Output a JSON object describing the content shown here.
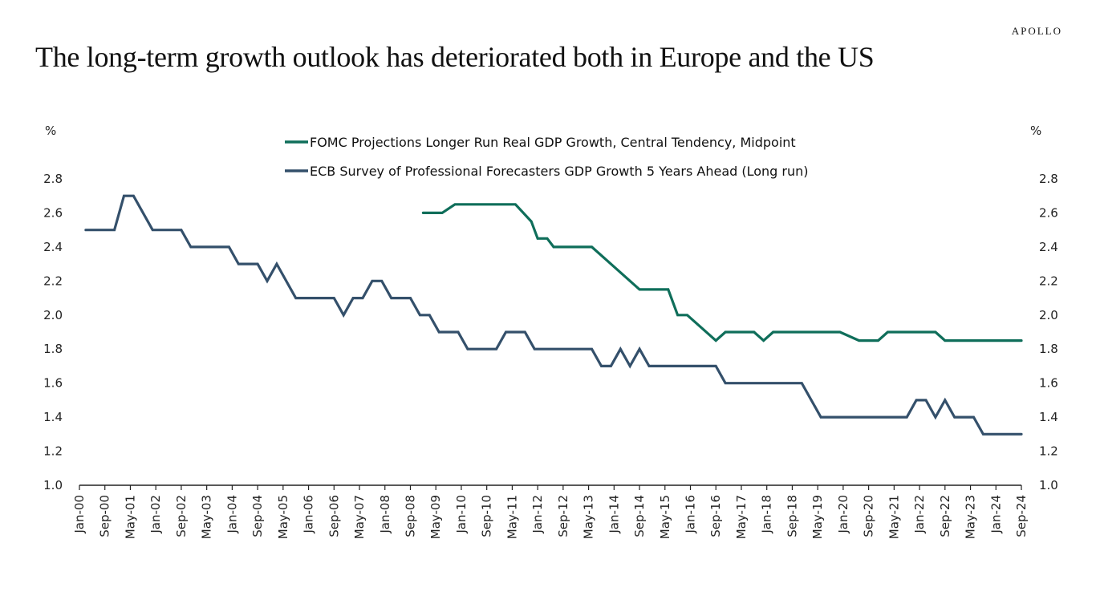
{
  "brand": "APOLLO",
  "title": "The long-term growth outlook has deteriorated both in Europe and the US",
  "chart_data": {
    "type": "line",
    "title": "The long-term growth outlook has deteriorated both in Europe and the US",
    "ylabel_left": "%",
    "ylabel_right": "%",
    "xlabel": "",
    "ylim": [
      1.0,
      2.8
    ],
    "yticks": [
      "1.0",
      "1.2",
      "1.4",
      "1.6",
      "1.8",
      "2.0",
      "2.2",
      "2.4",
      "2.6",
      "2.8"
    ],
    "ytick_values": [
      1.0,
      1.2,
      1.4,
      1.6,
      1.8,
      2.0,
      2.2,
      2.4,
      2.6,
      2.8
    ],
    "x_unit": "months since Jan-2000",
    "xlim": [
      0,
      296
    ],
    "xtick_step_months": 8,
    "xticks": [
      "Jan-00",
      "Sep-00",
      "May-01",
      "Jan-02",
      "Sep-02",
      "May-03",
      "Jan-04",
      "Sep-04",
      "May-05",
      "Jan-06",
      "Sep-06",
      "May-07",
      "Jan-08",
      "Sep-08",
      "May-09",
      "Jan-10",
      "Sep-10",
      "May-11",
      "Jan-12",
      "Sep-12",
      "May-13",
      "Jan-14",
      "Sep-14",
      "May-15",
      "Jan-16",
      "Sep-16",
      "May-17",
      "Jan-18",
      "Sep-18",
      "May-19",
      "Jan-20",
      "Sep-20",
      "May-21",
      "Jan-22",
      "Sep-22",
      "May-23",
      "Jan-24",
      "Sep-24"
    ],
    "grid": false,
    "legend_position": "top-center",
    "series": [
      {
        "name": "FOMC Projections Longer Run Real GDP Growth, Central Tendency, Midpoint",
        "color": "#0f6e5a",
        "points": [
          [
            108,
            2.6
          ],
          [
            114,
            2.6
          ],
          [
            118,
            2.65
          ],
          [
            137,
            2.65
          ],
          [
            142,
            2.55
          ],
          [
            144,
            2.45
          ],
          [
            147,
            2.45
          ],
          [
            149,
            2.4
          ],
          [
            161,
            2.4
          ],
          [
            176,
            2.15
          ],
          [
            185,
            2.15
          ],
          [
            188,
            2.0
          ],
          [
            191,
            2.0
          ],
          [
            200,
            1.85
          ],
          [
            203,
            1.9
          ],
          [
            212,
            1.9
          ],
          [
            215,
            1.85
          ],
          [
            218,
            1.9
          ],
          [
            239,
            1.9
          ],
          [
            245,
            1.85
          ],
          [
            251,
            1.85
          ],
          [
            254,
            1.9
          ],
          [
            269,
            1.9
          ],
          [
            272,
            1.85
          ],
          [
            296,
            1.85
          ]
        ]
      },
      {
        "name": "ECB Survey of Professional Forecasters GDP Growth 5 Years Ahead (Long run)",
        "color": "#34506b",
        "points": [
          [
            2,
            2.5
          ],
          [
            11,
            2.5
          ],
          [
            14,
            2.7
          ],
          [
            17,
            2.7
          ],
          [
            23,
            2.5
          ],
          [
            32,
            2.5
          ],
          [
            35,
            2.4
          ],
          [
            47,
            2.4
          ],
          [
            50,
            2.3
          ],
          [
            56,
            2.3
          ],
          [
            59,
            2.2
          ],
          [
            62,
            2.3
          ],
          [
            68,
            2.1
          ],
          [
            80,
            2.1
          ],
          [
            83,
            2.0
          ],
          [
            86,
            2.1
          ],
          [
            89,
            2.1
          ],
          [
            92,
            2.2
          ],
          [
            95,
            2.2
          ],
          [
            98,
            2.1
          ],
          [
            104,
            2.1
          ],
          [
            107,
            2.0
          ],
          [
            110,
            2.0
          ],
          [
            113,
            1.9
          ],
          [
            119,
            1.9
          ],
          [
            122,
            1.8
          ],
          [
            131,
            1.8
          ],
          [
            134,
            1.9
          ],
          [
            140,
            1.9
          ],
          [
            143,
            1.8
          ],
          [
            161,
            1.8
          ],
          [
            164,
            1.7
          ],
          [
            167,
            1.7
          ],
          [
            170,
            1.8
          ],
          [
            173,
            1.7
          ],
          [
            176,
            1.8
          ],
          [
            179,
            1.7
          ],
          [
            200,
            1.7
          ],
          [
            203,
            1.6
          ],
          [
            227,
            1.6
          ],
          [
            233,
            1.4
          ],
          [
            260,
            1.4
          ],
          [
            263,
            1.5
          ],
          [
            266,
            1.5
          ],
          [
            269,
            1.4
          ],
          [
            272,
            1.5
          ],
          [
            275,
            1.4
          ],
          [
            281,
            1.4
          ],
          [
            284,
            1.3
          ],
          [
            296,
            1.3
          ]
        ]
      }
    ]
  }
}
